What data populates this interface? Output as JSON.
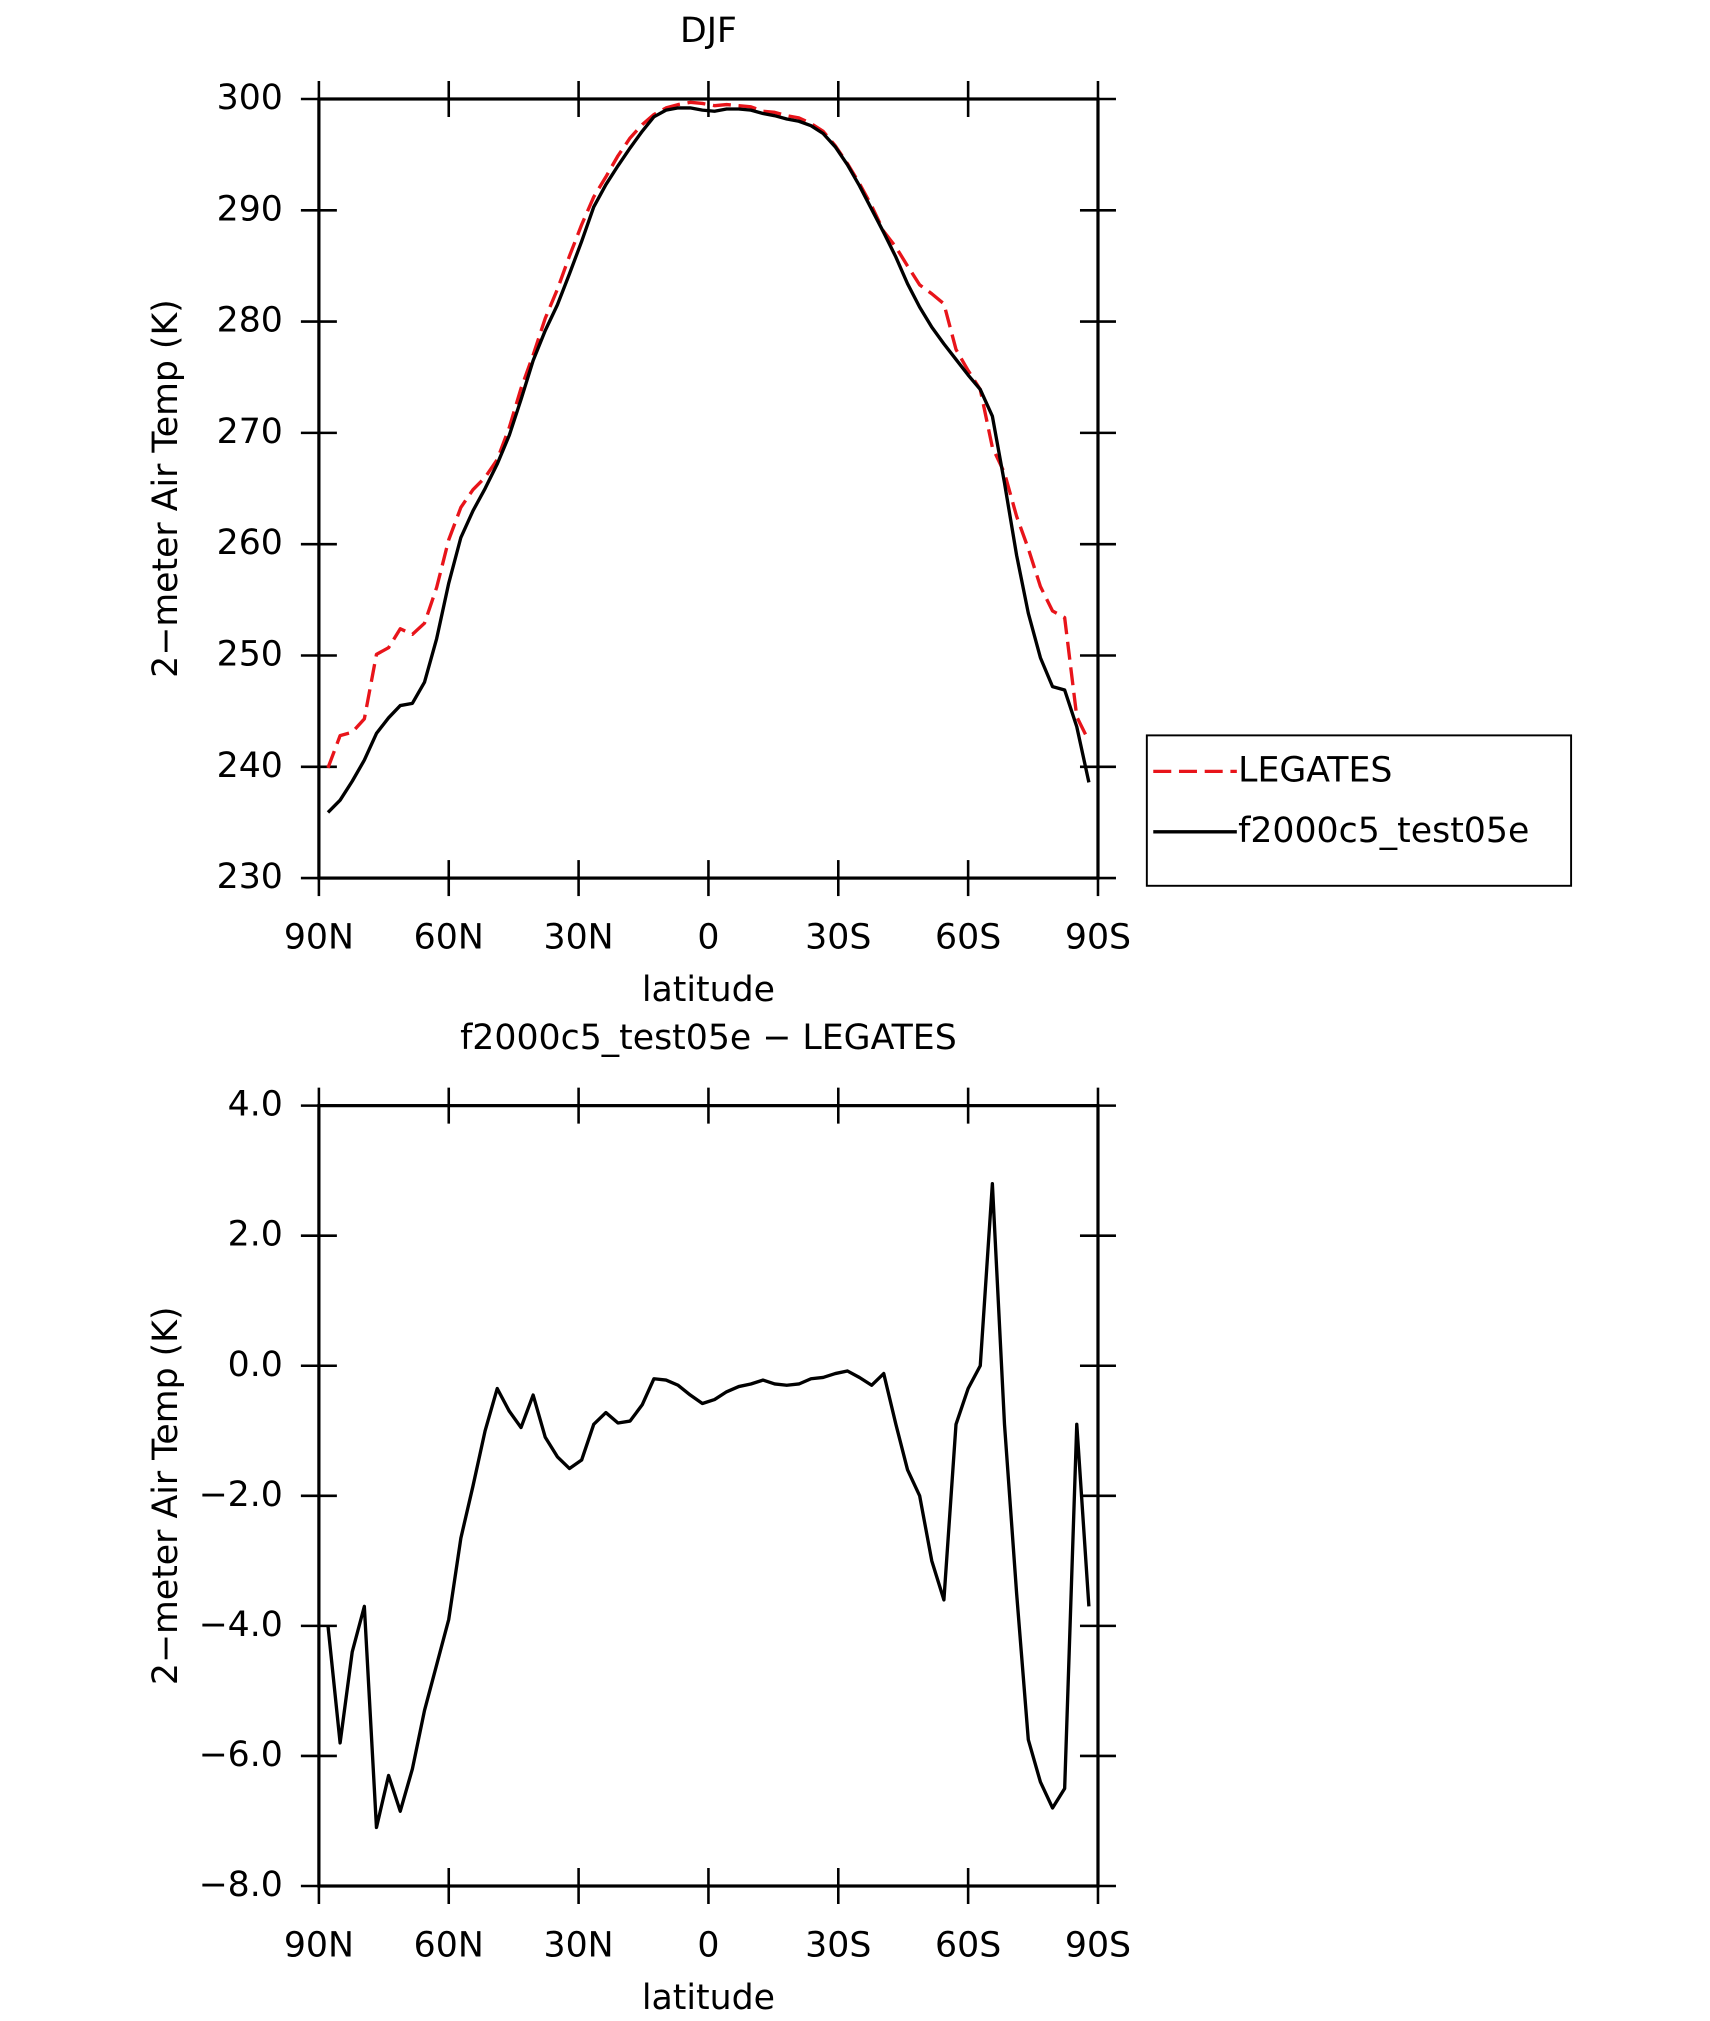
{
  "chart_data": [
    {
      "type": "line",
      "title": "DJF",
      "y_label": "2−meter Air Temp (K)",
      "x_label": "latitude",
      "x": [
        87.9,
        85.1,
        82.3,
        79.5,
        76.7,
        73.9,
        71.2,
        68.4,
        65.6,
        62.8,
        60.0,
        57.2,
        54.4,
        51.6,
        48.8,
        46.0,
        43.3,
        40.5,
        37.7,
        34.9,
        32.1,
        29.3,
        26.5,
        23.7,
        20.9,
        18.1,
        15.3,
        12.6,
        9.8,
        7.0,
        4.2,
        1.4,
        -1.4,
        -4.2,
        -7.0,
        -9.8,
        -12.6,
        -15.3,
        -18.1,
        -20.9,
        -23.7,
        -26.5,
        -29.3,
        -32.1,
        -34.9,
        -37.7,
        -40.5,
        -43.3,
        -46.0,
        -48.8,
        -51.6,
        -54.4,
        -57.2,
        -60.0,
        -62.8,
        -65.6,
        -68.4,
        -71.2,
        -73.9,
        -76.7,
        -79.5,
        -82.3,
        -85.1,
        -87.9
      ],
      "series": [
        {
          "name": "LEGATES",
          "color": "#e8141a",
          "style": "dashed",
          "values": [
            239.9,
            242.8,
            243.1,
            244.3,
            250.1,
            250.7,
            252.4,
            251.9,
            252.9,
            256.1,
            260.4,
            263.3,
            264.9,
            266.0,
            267.6,
            270.5,
            274.0,
            277.0,
            280.3,
            282.9,
            285.9,
            288.7,
            291.2,
            293.0,
            294.9,
            296.5,
            297.7,
            298.6,
            299.2,
            299.5,
            299.7,
            299.6,
            299.4,
            299.5,
            299.4,
            299.3,
            298.9,
            298.8,
            298.5,
            298.3,
            297.8,
            297.1,
            295.8,
            294.2,
            292.4,
            290.4,
            288.1,
            286.7,
            285.0,
            283.3,
            282.5,
            281.6,
            277.5,
            275.6,
            273.9,
            268.7,
            266.4,
            262.5,
            259.6,
            256.2,
            254.0,
            253.4,
            244.5,
            242.3
          ]
        },
        {
          "name": "f2000c5_test05e",
          "color": "#000000",
          "style": "solid",
          "values": [
            235.9,
            237.0,
            238.7,
            240.6,
            243.0,
            244.4,
            245.5,
            245.7,
            247.6,
            251.5,
            256.5,
            260.6,
            263.0,
            265.0,
            267.2,
            269.8,
            273.0,
            276.5,
            279.2,
            281.5,
            284.3,
            287.2,
            290.3,
            292.3,
            294.0,
            295.6,
            297.1,
            298.4,
            299.0,
            299.2,
            299.2,
            299.0,
            298.9,
            299.1,
            299.1,
            299.0,
            298.7,
            298.5,
            298.2,
            298.0,
            297.6,
            296.9,
            295.7,
            294.1,
            292.2,
            290.1,
            288.0,
            285.8,
            283.4,
            281.3,
            279.5,
            278.0,
            276.6,
            275.2,
            273.9,
            271.5,
            265.5,
            259.0,
            253.8,
            249.8,
            247.2,
            246.9,
            243.6,
            238.6
          ]
        }
      ],
      "xlim": [
        90,
        -90
      ],
      "xticks": [
        {
          "value": 90,
          "label": "90N"
        },
        {
          "value": 60,
          "label": "60N"
        },
        {
          "value": 30,
          "label": "30N"
        },
        0,
        {
          "value": -30,
          "label": "30S"
        },
        {
          "value": -60,
          "label": "60S"
        },
        {
          "value": -90,
          "label": "90S"
        }
      ],
      "ylim": [
        230,
        300
      ],
      "yticks": [
        230,
        240,
        250,
        260,
        270,
        280,
        290,
        300
      ],
      "legend": "right"
    },
    {
      "type": "line",
      "title": "f2000c5_test05e − LEGATES",
      "y_label": "2−meter Air Temp (K)",
      "x_label": "latitude",
      "x": [
        87.9,
        85.1,
        82.3,
        79.5,
        76.7,
        73.9,
        71.2,
        68.4,
        65.6,
        62.8,
        60.0,
        57.2,
        54.4,
        51.6,
        48.8,
        46.0,
        43.3,
        40.5,
        37.7,
        34.9,
        32.1,
        29.3,
        26.5,
        23.7,
        20.9,
        18.1,
        15.3,
        12.6,
        9.8,
        7.0,
        4.2,
        1.4,
        -1.4,
        -4.2,
        -7.0,
        -9.8,
        -12.6,
        -15.3,
        -18.1,
        -20.9,
        -23.7,
        -26.5,
        -29.3,
        -32.1,
        -34.9,
        -37.7,
        -40.5,
        -43.3,
        -46.0,
        -48.8,
        -51.6,
        -54.4,
        -57.2,
        -60.0,
        -62.8,
        -65.6,
        -68.4,
        -71.2,
        -73.9,
        -76.7,
        -79.5,
        -82.3,
        -85.1,
        -87.9
      ],
      "values": [
        -4.0,
        -5.8,
        -4.4,
        -3.7,
        -7.1,
        -6.3,
        -6.85,
        -6.2,
        -5.3,
        -4.6,
        -3.9,
        -2.65,
        -1.85,
        -1.0,
        -0.35,
        -0.7,
        -0.95,
        -0.45,
        -1.1,
        -1.4,
        -1.58,
        -1.45,
        -0.9,
        -0.72,
        -0.88,
        -0.85,
        -0.6,
        -0.2,
        -0.22,
        -0.3,
        -0.45,
        -0.58,
        -0.52,
        -0.4,
        -0.32,
        -0.28,
        -0.22,
        -0.28,
        -0.3,
        -0.28,
        -0.2,
        -0.18,
        -0.12,
        -0.08,
        -0.18,
        -0.3,
        -0.12,
        -0.9,
        -1.6,
        -2.0,
        -3.0,
        -3.6,
        -0.9,
        -0.35,
        0.0,
        2.8,
        -0.9,
        -3.5,
        -5.75,
        -6.4,
        -6.8,
        -6.5,
        -0.9,
        -3.7
      ],
      "color": "#000000",
      "xlim": [
        90,
        -90
      ],
      "xticks": [
        {
          "value": 90,
          "label": "90N"
        },
        {
          "value": 60,
          "label": "60N"
        },
        {
          "value": 30,
          "label": "30N"
        },
        0,
        {
          "value": -30,
          "label": "30S"
        },
        {
          "value": -60,
          "label": "60S"
        },
        {
          "value": -90,
          "label": "90S"
        }
      ],
      "ylim": [
        -8,
        4
      ],
      "yticks": [
        {
          "value": -8,
          "label": "−8.0"
        },
        {
          "value": -6,
          "label": "−6.0"
        },
        {
          "value": -4,
          "label": "−4.0"
        },
        {
          "value": -2,
          "label": "−2.0"
        },
        {
          "value": 0,
          "label": "0.0"
        },
        {
          "value": 2,
          "label": "2.0"
        },
        {
          "value": 4,
          "label": "4.0"
        }
      ]
    }
  ]
}
